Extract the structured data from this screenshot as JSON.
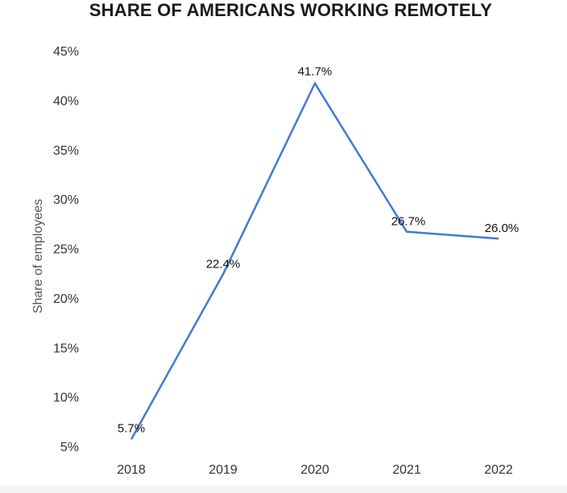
{
  "chart_data": {
    "type": "line",
    "title": "SHARE OF AMERICANS WORKING REMOTELY",
    "xlabel": "",
    "ylabel": "Share of employees",
    "categories": [
      "2018",
      "2019",
      "2020",
      "2021",
      "2022"
    ],
    "series": [
      {
        "values": [
          5.7,
          22.4,
          41.7,
          26.7,
          26.0
        ],
        "labels": [
          "5.7%",
          "22.4%",
          "41.7%",
          "26.7%",
          "26.0%"
        ]
      }
    ],
    "ylim": [
      5,
      45
    ],
    "yticks": [
      "5%",
      "10%",
      "15%",
      "20%",
      "25%",
      "30%",
      "35%",
      "40%",
      "45%"
    ],
    "grid": false,
    "legend": "none",
    "line_color": "#3f7ad6"
  }
}
